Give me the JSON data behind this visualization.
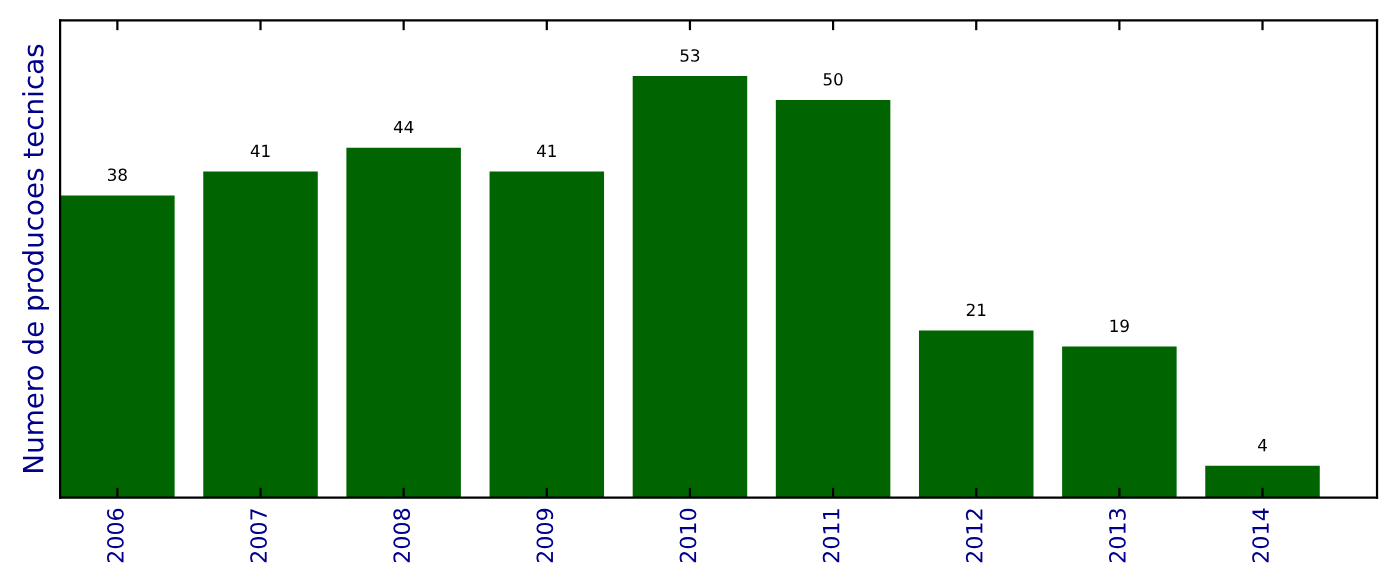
{
  "chart_data": {
    "type": "bar",
    "ylabel": "Numero de producoes tecnicas",
    "categories": [
      "2006",
      "2007",
      "2008",
      "2009",
      "2010",
      "2011",
      "2012",
      "2013",
      "2014"
    ],
    "values": [
      38,
      41,
      44,
      41,
      53,
      50,
      21,
      19,
      4
    ],
    "color": "#006400",
    "ylim": [
      0,
      60
    ],
    "data_labels": true,
    "tick_labels": "x",
    "grid": false,
    "legend": false
  }
}
